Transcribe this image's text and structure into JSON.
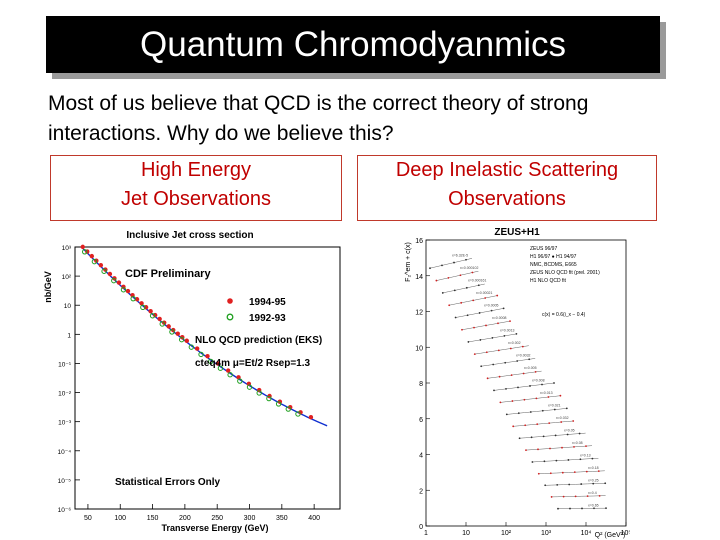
{
  "slide": {
    "title": "Quantum Chromodyanmics",
    "intro": "Most of us believe that QCD is the correct theory of strong interactions.  Why do we believe this?",
    "left_label": {
      "line1": "High Energy",
      "line2": "Jet Observations"
    },
    "right_label": {
      "line1": "Deep Inelastic Scattering",
      "line2": "Observations"
    }
  },
  "jet_plot": {
    "title": "Inclusive Jet cross section",
    "ylabel": "nb/GeV",
    "xlabel": "Transverse Energy  (GeV)",
    "watermark": "CDF Preliminary",
    "legend": [
      "1994-95",
      "1992-93"
    ],
    "theory": "NLO QCD prediction (EKS)",
    "pdf_note": "cteq4m  μ=Et/2  Rsep=1.3",
    "errors_note": "Statistical Errors Only",
    "xticks": [
      "50",
      "100",
      "150",
      "200",
      "250",
      "300",
      "350",
      "400"
    ],
    "yticks": [
      "10³",
      "10²",
      "10",
      "1",
      "10⁻¹",
      "10⁻²",
      "10⁻³",
      "10⁻⁴",
      "10⁻⁵",
      "10⁻⁶"
    ],
    "colors": {
      "run1b": "#e02020",
      "run1a": "#20a020",
      "theory": "#1030d0"
    }
  },
  "dis_plot": {
    "title": "ZEUS+H1",
    "ylabel": "F₂^em + c(x)",
    "xlabel": "Q² (GeV²)",
    "yticks": [
      "16",
      "14",
      "12",
      "10",
      "8",
      "6",
      "4",
      "2",
      "0"
    ],
    "xticks": [
      "1",
      "10",
      "10²",
      "10³",
      "10⁴",
      "10⁵"
    ],
    "legend": [
      "ZEUS 96/97",
      "H1 96/97 ● H1 94/97",
      "NMC, BCDMS, E665",
      "ZEUS NLO QCD fit (prel. 2001)",
      "H1 NLO QCD fit"
    ],
    "note": "c(x) = 0.6(i_x − 0.4)",
    "bin_labels": [
      "x=6.32E-5",
      "x=0.000102",
      "x=0.000161",
      "x=0.00021",
      "x=0.0005",
      "x=0.0008",
      "x=0.0013",
      "x=0.002",
      "x=0.0032",
      "x=0.005",
      "x=0.008",
      "x=0.013",
      "x=0.021",
      "x=0.032",
      "x=0.05",
      "x=0.08",
      "x=0.13",
      "x=0.18",
      "x=0.25",
      "x=0.4",
      "x=0.65"
    ],
    "colors": {
      "zeus": "#303030",
      "h1": "#d02020",
      "fit": "#606060"
    }
  }
}
